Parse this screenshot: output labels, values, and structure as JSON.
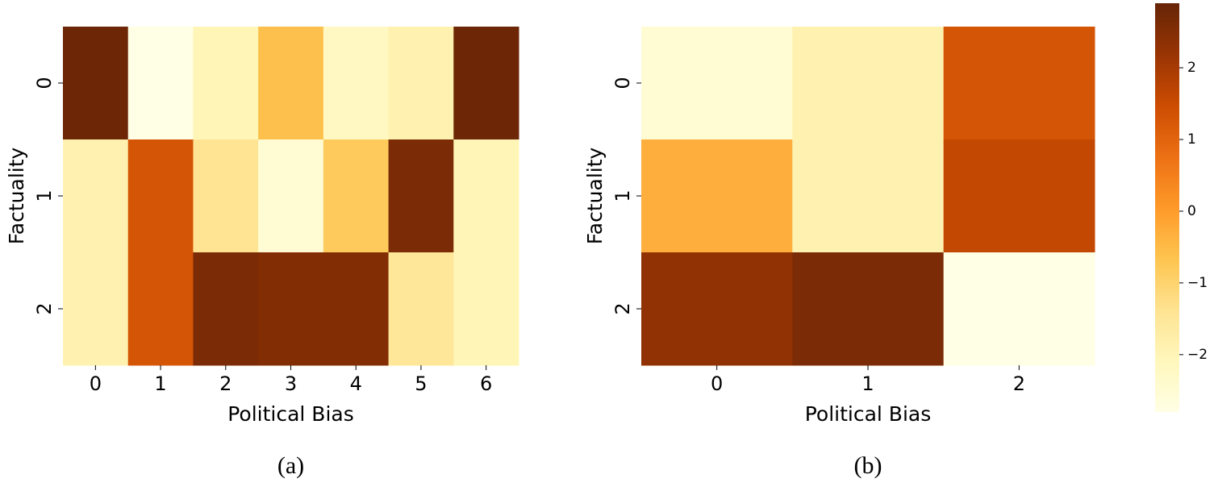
{
  "chart_data": [
    {
      "type": "heatmap",
      "x_label": "Political Bias",
      "y_label": "Factuality",
      "caption": "(a)",
      "x_categories": [
        0,
        1,
        2,
        3,
        4,
        5,
        6
      ],
      "y_categories": [
        0,
        1,
        2
      ],
      "values": [
        [
          2.8,
          -2.9,
          -2.0,
          -0.6,
          -2.2,
          -1.9,
          2.8
        ],
        [
          -1.9,
          1.3,
          -1.4,
          -2.5,
          -0.8,
          2.6,
          -2.0
        ],
        [
          -1.9,
          1.3,
          2.6,
          2.5,
          2.5,
          -1.5,
          -2.0
        ]
      ]
    },
    {
      "type": "heatmap",
      "x_label": "Political Bias",
      "y_label": "Factuality",
      "caption": "(b)",
      "x_categories": [
        0,
        1,
        2
      ],
      "y_categories": [
        0,
        1,
        2
      ],
      "values": [
        [
          -2.5,
          -1.9,
          1.3
        ],
        [
          -0.3,
          -1.9,
          1.6
        ],
        [
          2.3,
          2.6,
          -2.8
        ]
      ]
    }
  ],
  "colorbar": {
    "lim": [
      -2.8,
      2.9
    ],
    "ticks": [
      {
        "value": -2,
        "label": "−2"
      },
      {
        "value": -1,
        "label": "−1"
      },
      0,
      1,
      2
    ],
    "colormap": [
      "#ffffe5",
      "#fff7bc",
      "#fee391",
      "#fec44f",
      "#fe9929",
      "#ec7014",
      "#cc4c02",
      "#993404",
      "#662506"
    ]
  }
}
